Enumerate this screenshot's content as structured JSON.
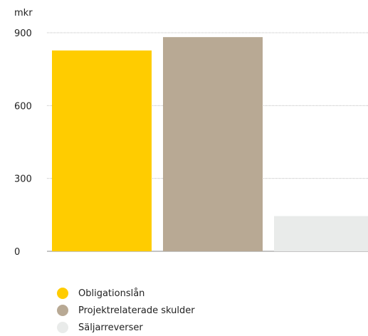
{
  "chart_data": {
    "type": "bar",
    "unit_label": "mkr",
    "categories": [
      "Obligationslån",
      "Projektrelaterade skulder",
      "Säljarreverser"
    ],
    "values": [
      827,
      882,
      145
    ],
    "colors": [
      "#ffcc00",
      "#b8a994",
      "#e9ebea"
    ],
    "yticks": [
      0,
      300,
      600,
      900
    ],
    "ylim": [
      0,
      900
    ],
    "grid": true,
    "legend_position": "bottom"
  }
}
